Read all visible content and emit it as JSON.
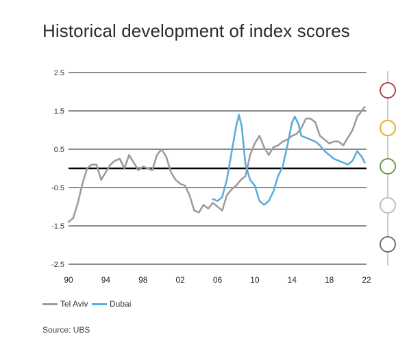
{
  "title": "Historical development of index scores",
  "source": "Source: UBS",
  "chart_data": {
    "type": "line",
    "title": "Historical development of index scores",
    "xlabel": "",
    "ylabel": "",
    "xlim": [
      1990,
      2022
    ],
    "ylim": [
      -2.5,
      2.5
    ],
    "x_ticks": [
      "90",
      "94",
      "98",
      "02",
      "06",
      "10",
      "14",
      "18",
      "22"
    ],
    "x_tick_values": [
      1990,
      1994,
      1998,
      2002,
      2006,
      2010,
      2014,
      2018,
      2022
    ],
    "y_ticks": [
      "2.5",
      "1.5",
      "0.5",
      "-0.5",
      "-1.5",
      "-2.5"
    ],
    "y_tick_values": [
      2.5,
      1.5,
      0.5,
      -0.5,
      -1.5,
      -2.5
    ],
    "zero_line": true,
    "grid": "horizontal",
    "legend_position": "bottom-left",
    "series": [
      {
        "name": "Tel Aviv",
        "color": "#9c9c9c",
        "x": [
          1990.0,
          1990.5,
          1991.0,
          1991.5,
          1992.0,
          1992.5,
          1993.0,
          1993.5,
          1994.0,
          1994.5,
          1995.0,
          1995.5,
          1996.0,
          1996.5,
          1997.0,
          1997.5,
          1998.0,
          1998.5,
          1999.0,
          1999.5,
          2000.0,
          2000.5,
          2001.0,
          2001.5,
          2002.0,
          2002.5,
          2003.0,
          2003.5,
          2004.0,
          2004.5,
          2005.0,
          2005.5,
          2006.0,
          2006.5,
          2007.0,
          2007.5,
          2008.0,
          2008.5,
          2009.0,
          2009.5,
          2010.0,
          2010.5,
          2011.0,
          2011.5,
          2012.0,
          2012.5,
          2013.0,
          2013.5,
          2014.0,
          2014.5,
          2015.0,
          2015.5,
          2016.0,
          2016.5,
          2017.0,
          2017.5,
          2018.0,
          2018.5,
          2019.0,
          2019.5,
          2020.0,
          2020.5,
          2021.0,
          2021.5,
          2021.8
        ],
        "values": [
          -1.4,
          -1.3,
          -0.9,
          -0.4,
          0.0,
          0.1,
          0.1,
          -0.3,
          -0.1,
          0.1,
          0.2,
          0.25,
          0.0,
          0.35,
          0.15,
          -0.05,
          0.05,
          0.0,
          -0.05,
          0.35,
          0.5,
          0.3,
          -0.1,
          -0.3,
          -0.4,
          -0.45,
          -0.7,
          -1.1,
          -1.15,
          -0.95,
          -1.05,
          -0.9,
          -1.0,
          -1.1,
          -0.7,
          -0.55,
          -0.45,
          -0.3,
          -0.2,
          0.35,
          0.65,
          0.85,
          0.55,
          0.35,
          0.55,
          0.6,
          0.7,
          0.75,
          0.85,
          0.9,
          1.05,
          1.3,
          1.3,
          1.2,
          0.85,
          0.75,
          0.65,
          0.7,
          0.7,
          0.6,
          0.8,
          1.0,
          1.35,
          1.5,
          1.6
        ]
      },
      {
        "name": "Dubai",
        "color": "#5aaedb",
        "x": [
          2005.5,
          2006.0,
          2006.5,
          2007.0,
          2007.5,
          2008.0,
          2008.3,
          2008.6,
          2009.0,
          2009.5,
          2010.0,
          2010.5,
          2011.0,
          2011.5,
          2012.0,
          2012.5,
          2013.0,
          2013.5,
          2014.0,
          2014.3,
          2014.7,
          2015.0,
          2015.5,
          2016.0,
          2016.5,
          2017.0,
          2017.5,
          2018.0,
          2018.5,
          2019.0,
          2019.5,
          2020.0,
          2020.5,
          2021.0,
          2021.5,
          2021.8
        ],
        "values": [
          -0.8,
          -0.85,
          -0.75,
          -0.3,
          0.4,
          1.1,
          1.4,
          1.1,
          0.1,
          -0.3,
          -0.45,
          -0.85,
          -0.95,
          -0.85,
          -0.6,
          -0.2,
          0.05,
          0.6,
          1.2,
          1.35,
          1.15,
          0.85,
          0.8,
          0.75,
          0.7,
          0.6,
          0.45,
          0.35,
          0.25,
          0.2,
          0.15,
          0.1,
          0.2,
          0.45,
          0.3,
          0.15
        ]
      }
    ],
    "side_markers": [
      {
        "color": "#b5434a"
      },
      {
        "color": "#e1ae2e"
      },
      {
        "color": "#6c9b4b"
      },
      {
        "color": "#c6bcae"
      },
      {
        "color": "#7d6b62"
      }
    ]
  }
}
